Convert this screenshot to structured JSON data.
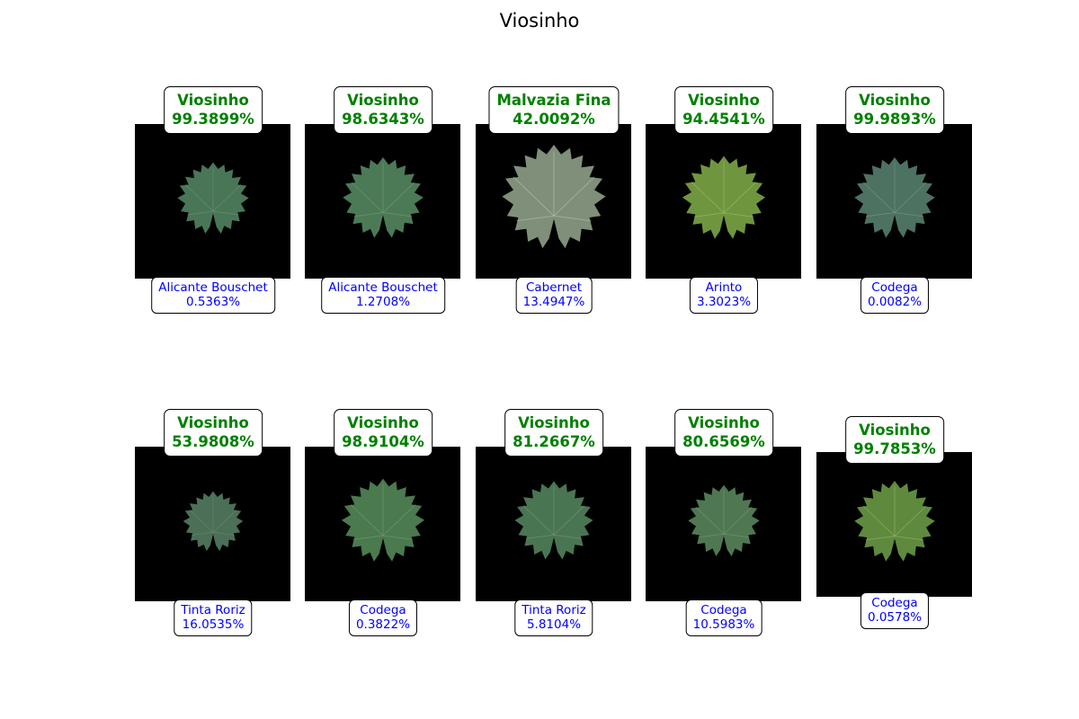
{
  "title": "Viosinho",
  "colors": {
    "top_label": "#008000",
    "bottom_label": "#0000ff",
    "image_bg": "#000000",
    "leaf": "#4f7a55"
  },
  "cells": [
    {
      "top_class": "Viosinho",
      "top_pct": "99.3899%",
      "bottom_class": "Alicante Bouschet",
      "bottom_pct": "0.5363%"
    },
    {
      "top_class": "Viosinho",
      "top_pct": "98.6343%",
      "bottom_class": "Alicante Bouschet",
      "bottom_pct": "1.2708%"
    },
    {
      "top_class": "Malvazia Fina",
      "top_pct": "42.0092%",
      "bottom_class": "Cabernet",
      "bottom_pct": "13.4947%"
    },
    {
      "top_class": "Viosinho",
      "top_pct": "94.4541%",
      "bottom_class": "Arinto",
      "bottom_pct": "3.3023%"
    },
    {
      "top_class": "Viosinho",
      "top_pct": "99.9893%",
      "bottom_class": "Codega",
      "bottom_pct": "0.0082%"
    },
    {
      "top_class": "Viosinho",
      "top_pct": "53.9808%",
      "bottom_class": "Tinta Roriz",
      "bottom_pct": "16.0535%"
    },
    {
      "top_class": "Viosinho",
      "top_pct": "98.9104%",
      "bottom_class": "Codega",
      "bottom_pct": "0.3822%"
    },
    {
      "top_class": "Viosinho",
      "top_pct": "81.2667%",
      "bottom_class": "Tinta Roriz",
      "bottom_pct": "5.8104%"
    },
    {
      "top_class": "Viosinho",
      "top_pct": "80.6569%",
      "bottom_class": "Codega",
      "bottom_pct": "10.5983%"
    },
    {
      "top_class": "Viosinho",
      "top_pct": "99.7853%",
      "bottom_class": "Codega",
      "bottom_pct": "0.0578%"
    }
  ]
}
